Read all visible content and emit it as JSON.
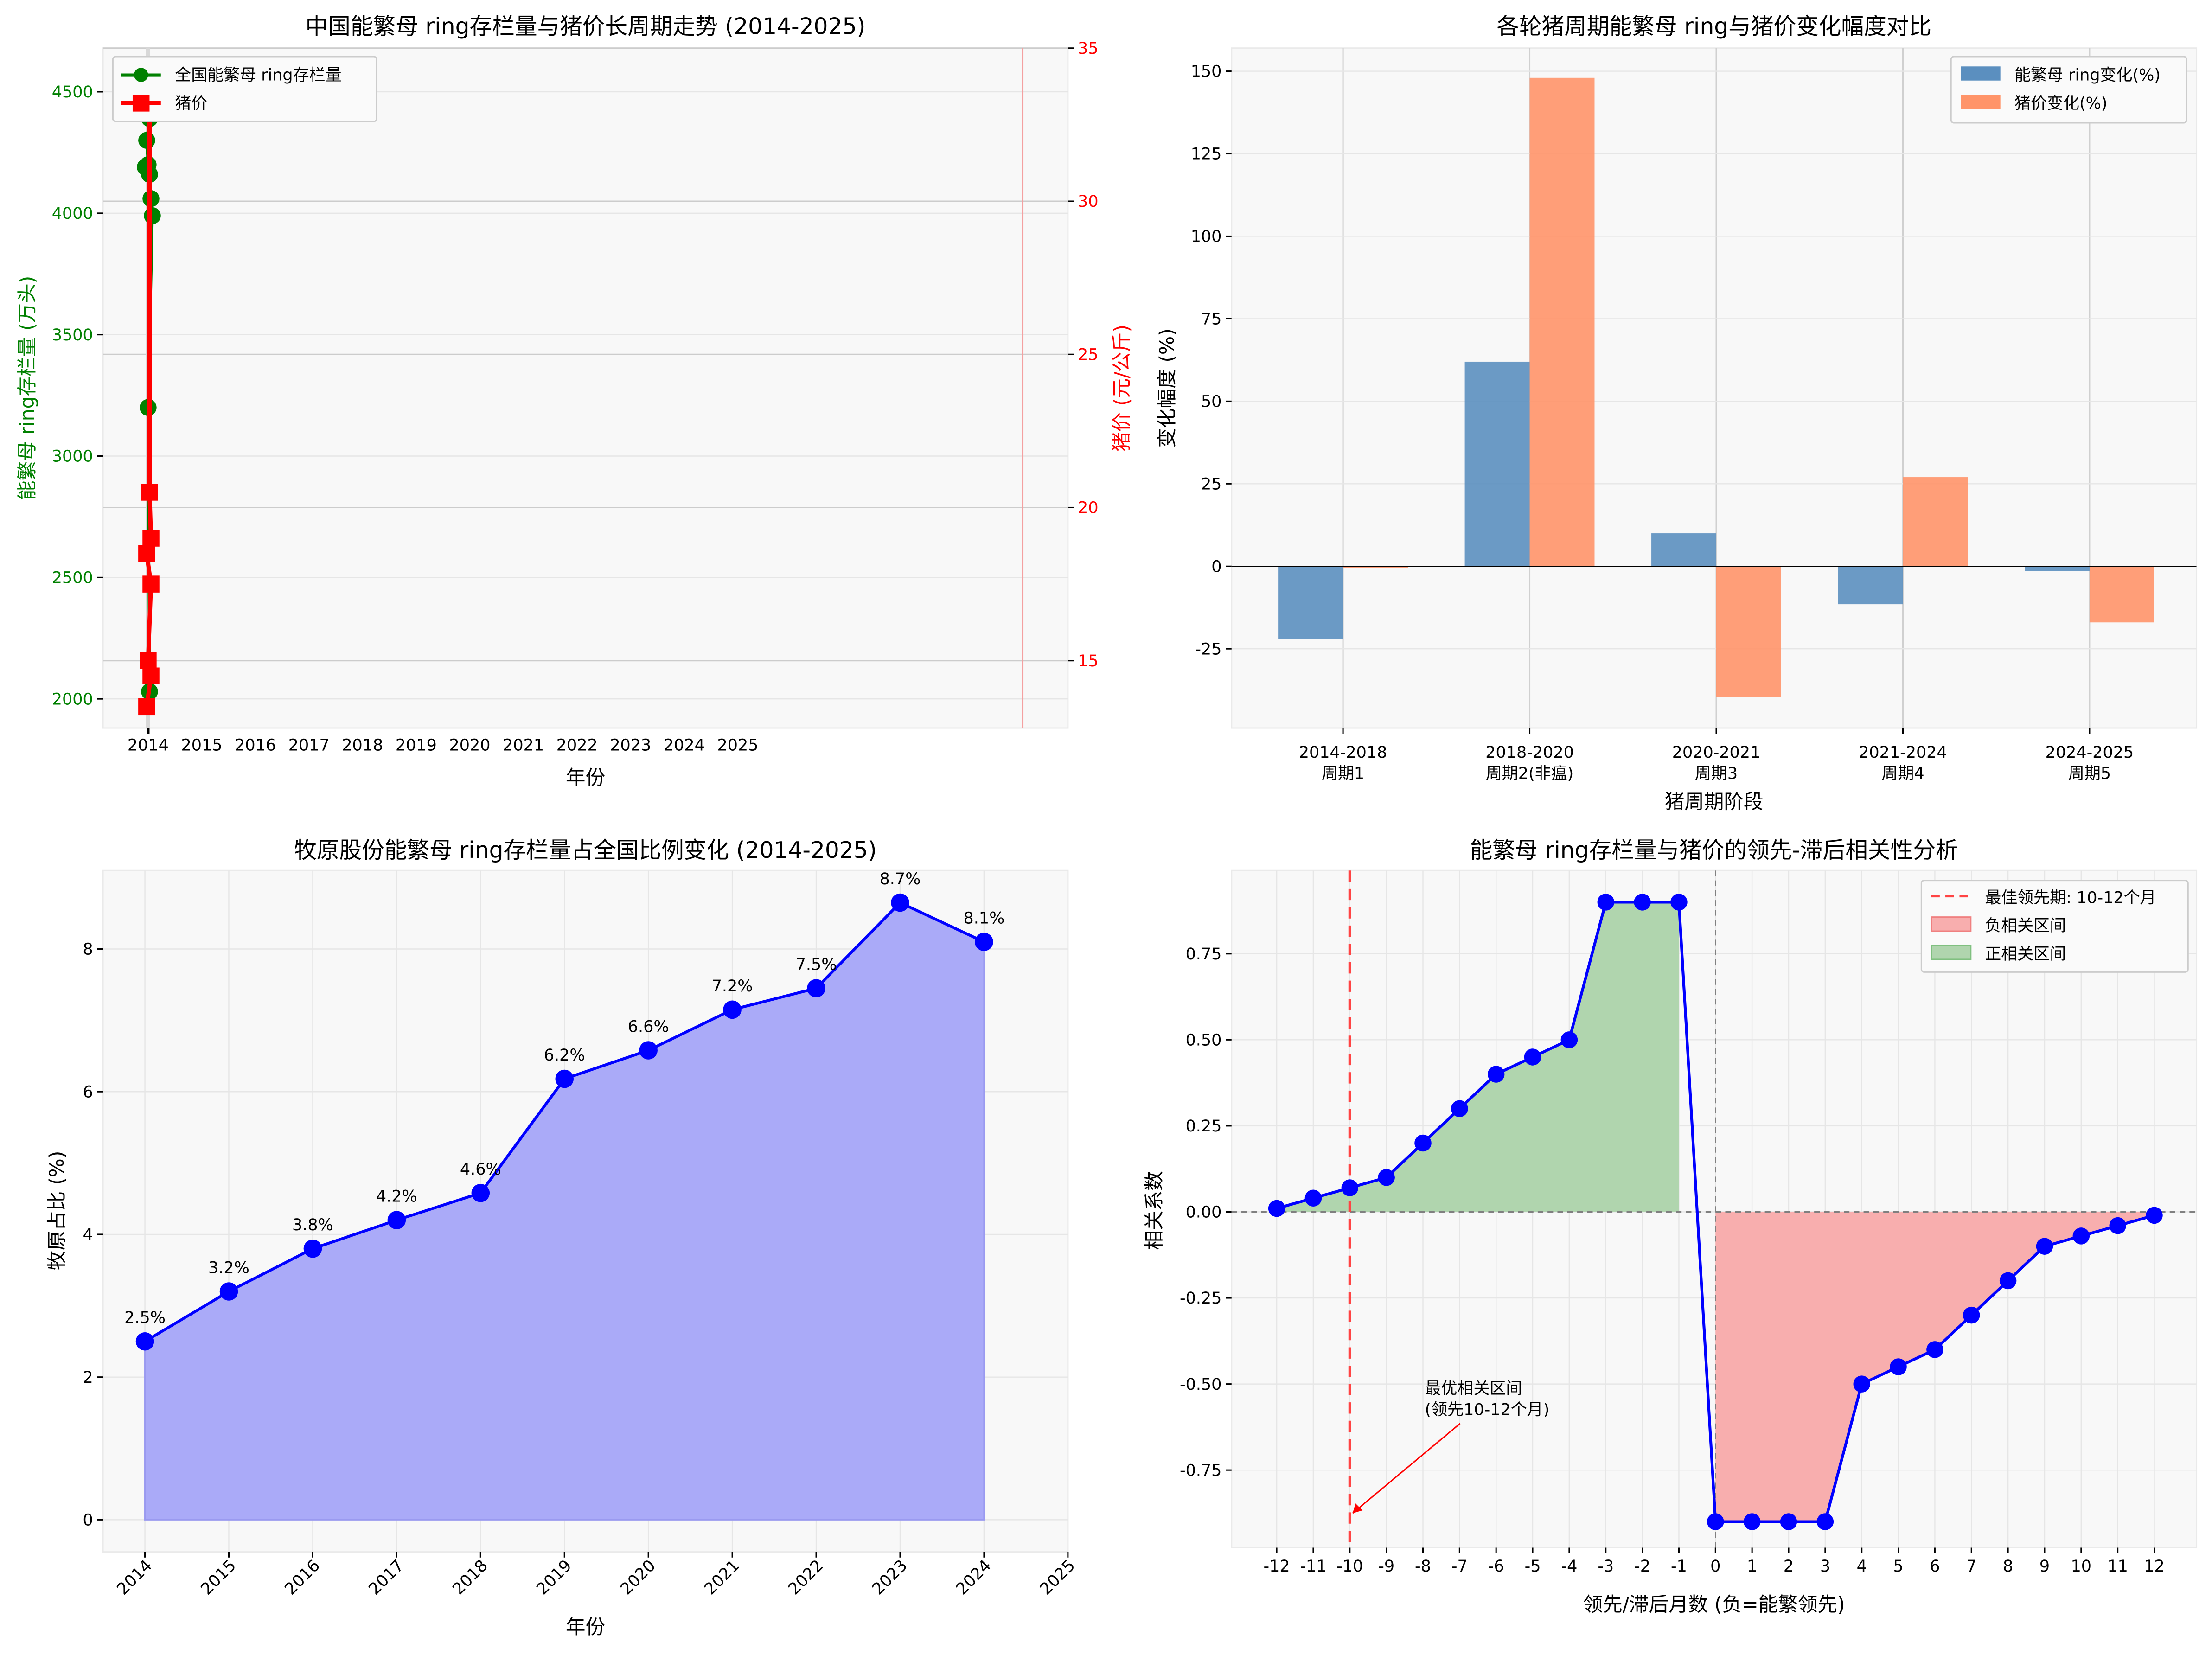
{
  "chart_data": [
    {
      "type": "line",
      "title": "中国能繁母 ring存栏量与猪价长周期走势 (2014-2025)",
      "xlabel": "年份",
      "ylabel": "能繁母 ring存栏量 (万头)",
      "ylabel_right": "猪价 (元/公斤)",
      "x_tick_labels": [
        "2014",
        "2015",
        "2016",
        "2017",
        "2018",
        "2019",
        "2020",
        "2021",
        "2022",
        "2023",
        "2024",
        "2025"
      ],
      "ylim": [
        1880,
        4680
      ],
      "ylim_right": [
        12.8,
        35
      ],
      "y_ticks": [
        2000,
        2500,
        3000,
        3500,
        4000,
        4500
      ],
      "y_ticks_right": [
        15,
        20,
        25,
        30,
        35
      ],
      "grid": true,
      "legend": "top-left",
      "colors": {
        "sows": "#008000",
        "price": "#ff0000",
        "vline": "#f4a0a0"
      },
      "series": [
        {
          "name": "全国能繁母 ring存栏量",
          "axis": "left",
          "values": [
            4580,
            4390,
            4300,
            4200,
            4190,
            4160,
            4060,
            3990,
            3200,
            2030
          ]
        },
        {
          "name": "猪价",
          "axis": "right",
          "values": [
            34,
            33.2,
            20.5,
            19,
            18.5,
            17.5,
            15,
            14.5,
            13.5
          ]
        }
      ]
    },
    {
      "type": "bar",
      "title": "各轮猪周期能繁母 ring与猪价变化幅度对比",
      "xlabel": "猪周期阶段",
      "ylabel": "变化幅度 (%)",
      "categories": [
        [
          "2014-2018",
          "周期1"
        ],
        [
          "2018-2020",
          "周期2(非瘟)"
        ],
        [
          "2020-2021",
          "周期3"
        ],
        [
          "2021-2024",
          "周期4"
        ],
        [
          "2024-2025",
          "周期5"
        ]
      ],
      "ylim": [
        -49,
        157
      ],
      "y_ticks": [
        -25,
        0,
        25,
        50,
        75,
        100,
        125,
        150
      ],
      "legend": "top-right",
      "series": [
        {
          "name": "能繁母 ring变化(%)",
          "color": "#5b8fbf",
          "values": [
            -22,
            62,
            10,
            -11.5,
            -1.5
          ]
        },
        {
          "name": "猪价变化(%)",
          "color": "#ff9469",
          "values": [
            -0.5,
            148,
            -39.5,
            27,
            -17
          ]
        }
      ]
    },
    {
      "type": "area",
      "title": "牧原股份能繁母 ring存栏量占全国比例变化 (2014-2025)",
      "xlabel": "年份",
      "ylabel": "牧原占比 (%)",
      "x": [
        2014,
        2015,
        2016,
        2017,
        2018,
        2019,
        2020,
        2021,
        2022,
        2023,
        2024
      ],
      "values": [
        2.5,
        3.2,
        3.8,
        4.2,
        4.58,
        6.18,
        6.58,
        7.15,
        7.45,
        8.65,
        8.1
      ],
      "data_labels": [
        "2.5%",
        "3.2%",
        "3.8%",
        "4.2%",
        "4.6%",
        "6.2%",
        "6.6%",
        "7.2%",
        "7.5%",
        "8.7%",
        "8.1%"
      ],
      "x_ticks": [
        2014,
        2015,
        2016,
        2017,
        2018,
        2019,
        2020,
        2021,
        2022,
        2023,
        2024,
        2025
      ],
      "xlim": [
        2013.5,
        2025
      ],
      "ylim": [
        -0.45,
        9.1
      ],
      "y_ticks": [
        0,
        2,
        4,
        6,
        8
      ],
      "colors": {
        "line": "#0000ff",
        "fill": "#aaaaf8"
      }
    },
    {
      "type": "line",
      "title": "能繁母 ring存栏量与猪价的领先-滞后相关性分析",
      "xlabel": "领先/滞后月数 (负=能繁领先)",
      "ylabel": "相关系数",
      "x": [
        -12,
        -11,
        -10,
        -9,
        -8,
        -7,
        -6,
        -5,
        -4,
        -3,
        -2,
        -1,
        0,
        1,
        2,
        3,
        4,
        5,
        6,
        7,
        8,
        9,
        10,
        11,
        12
      ],
      "values": [
        0.01,
        0.04,
        0.07,
        0.1,
        0.2,
        0.3,
        0.4,
        0.45,
        0.5,
        0.9,
        0.9,
        0.9,
        -0.9,
        -0.9,
        -0.9,
        -0.9,
        -0.5,
        -0.45,
        -0.4,
        -0.3,
        -0.2,
        -0.1,
        -0.07,
        -0.04,
        -0.01
      ],
      "ylim": [
        -1.0,
        0.99
      ],
      "y_ticks": [
        -0.75,
        -0.5,
        -0.25,
        0,
        0.25,
        0.5,
        0.75
      ],
      "y_tick_labels": [
        "-0.75",
        "-0.50",
        "-0.25",
        "0.00",
        "0.25",
        "0.50",
        "0.75"
      ],
      "legend": "top-right",
      "legend_entries": [
        "最佳领先期: 10-12个月",
        "负相关区间",
        "正相关区间"
      ],
      "best_lead_x": -10,
      "annotation": {
        "lines": [
          "最优相关区间",
          "(领先10-12个月)"
        ],
        "points_to": [
          -10,
          -0.9
        ]
      },
      "colors": {
        "line": "#0000ff",
        "positive": "#b0d5ae",
        "negative": "#f8aeae",
        "vline": "#ff4444"
      }
    }
  ]
}
